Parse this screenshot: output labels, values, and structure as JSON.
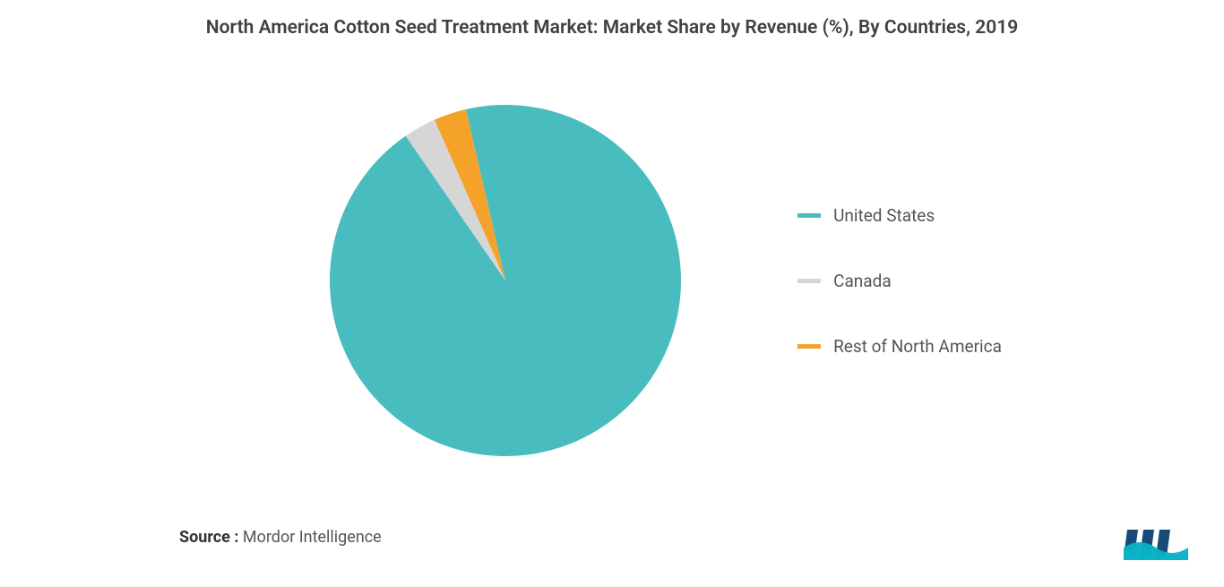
{
  "title": "North America Cotton Seed Treatment Market: Market Share by Revenue (%), By Countries, 2019",
  "title_fontsize": 21,
  "title_color": "#404040",
  "source": {
    "label": "Source :",
    "value": "Mordor Intelligence",
    "fontsize": 18
  },
  "chart": {
    "type": "pie",
    "radius": 196,
    "background_color": "#ffffff",
    "series": [
      {
        "label": "United States",
        "value": 94,
        "color": "#49bcbf"
      },
      {
        "label": "Canada",
        "value": 3,
        "color": "#d6d6d6"
      },
      {
        "label": "Rest of North America",
        "value": 3,
        "color": "#f5a22b"
      }
    ],
    "start_angle_deg": -13,
    "direction": "clockwise",
    "stroke_color": "#ffffff",
    "stroke_width": 0
  },
  "legend": {
    "fontsize": 19,
    "text_color": "#555555",
    "swatch_width": 26,
    "swatch_height": 5,
    "gap": 50,
    "position": "right"
  },
  "logo": {
    "colors": {
      "bar": "#174b7a",
      "wave": "#07b2c6"
    }
  }
}
